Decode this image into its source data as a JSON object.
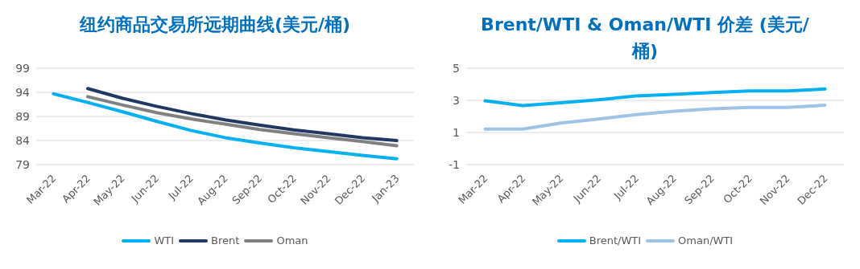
{
  "chart_data": [
    {
      "type": "line",
      "title": "纽约商品交易所远期曲线(美元/桶)",
      "categories": [
        "Mar-22",
        "Apr-22",
        "May-22",
        "Jun-22",
        "Jul-22",
        "Aug-22",
        "Sep-22",
        "Oct-22",
        "Nov-22",
        "Dec-22",
        "Jan-23"
      ],
      "ylim": [
        79,
        99
      ],
      "yticks": [
        79,
        84,
        89,
        94,
        99
      ],
      "grid": "y",
      "legend": "bottom",
      "series": [
        {
          "name": "WTI",
          "color": "#00b0f0",
          "values": [
            93.7,
            91.9,
            90.0,
            88.0,
            86.1,
            84.6,
            83.5,
            82.5,
            81.7,
            80.9,
            80.2
          ]
        },
        {
          "name": "Brent",
          "color": "#1f3864",
          "values": [
            null,
            94.8,
            92.8,
            91.1,
            89.6,
            88.3,
            87.2,
            86.2,
            85.4,
            84.6,
            84.0
          ]
        },
        {
          "name": "Oman",
          "color": "#808080",
          "values": [
            null,
            93.1,
            91.4,
            89.8,
            88.5,
            87.4,
            86.3,
            85.4,
            84.6,
            83.8,
            82.9
          ]
        }
      ]
    },
    {
      "type": "line",
      "title": "Brent/WTI & Oman/WTI 价差 (美元/桶)",
      "categories": [
        "Mar-22",
        "Apr-22",
        "May-22",
        "Jun-22",
        "Jul-22",
        "Aug-22",
        "Sep-22",
        "Oct-22",
        "Nov-22",
        "Dec-22"
      ],
      "ylim": [
        -1,
        5
      ],
      "yticks": [
        -1,
        1,
        3,
        5
      ],
      "grid": "y",
      "legend": "bottom",
      "series": [
        {
          "name": "Brent/WTI",
          "color": "#00b0f0",
          "values": [
            2.97,
            2.67,
            2.85,
            3.04,
            3.27,
            3.37,
            3.49,
            3.59,
            3.59,
            3.71
          ]
        },
        {
          "name": "Oman/WTI",
          "color": "#9dc3e6",
          "values": [
            1.21,
            1.21,
            1.59,
            1.84,
            2.11,
            2.33,
            2.48,
            2.56,
            2.56,
            2.7
          ]
        }
      ]
    }
  ]
}
